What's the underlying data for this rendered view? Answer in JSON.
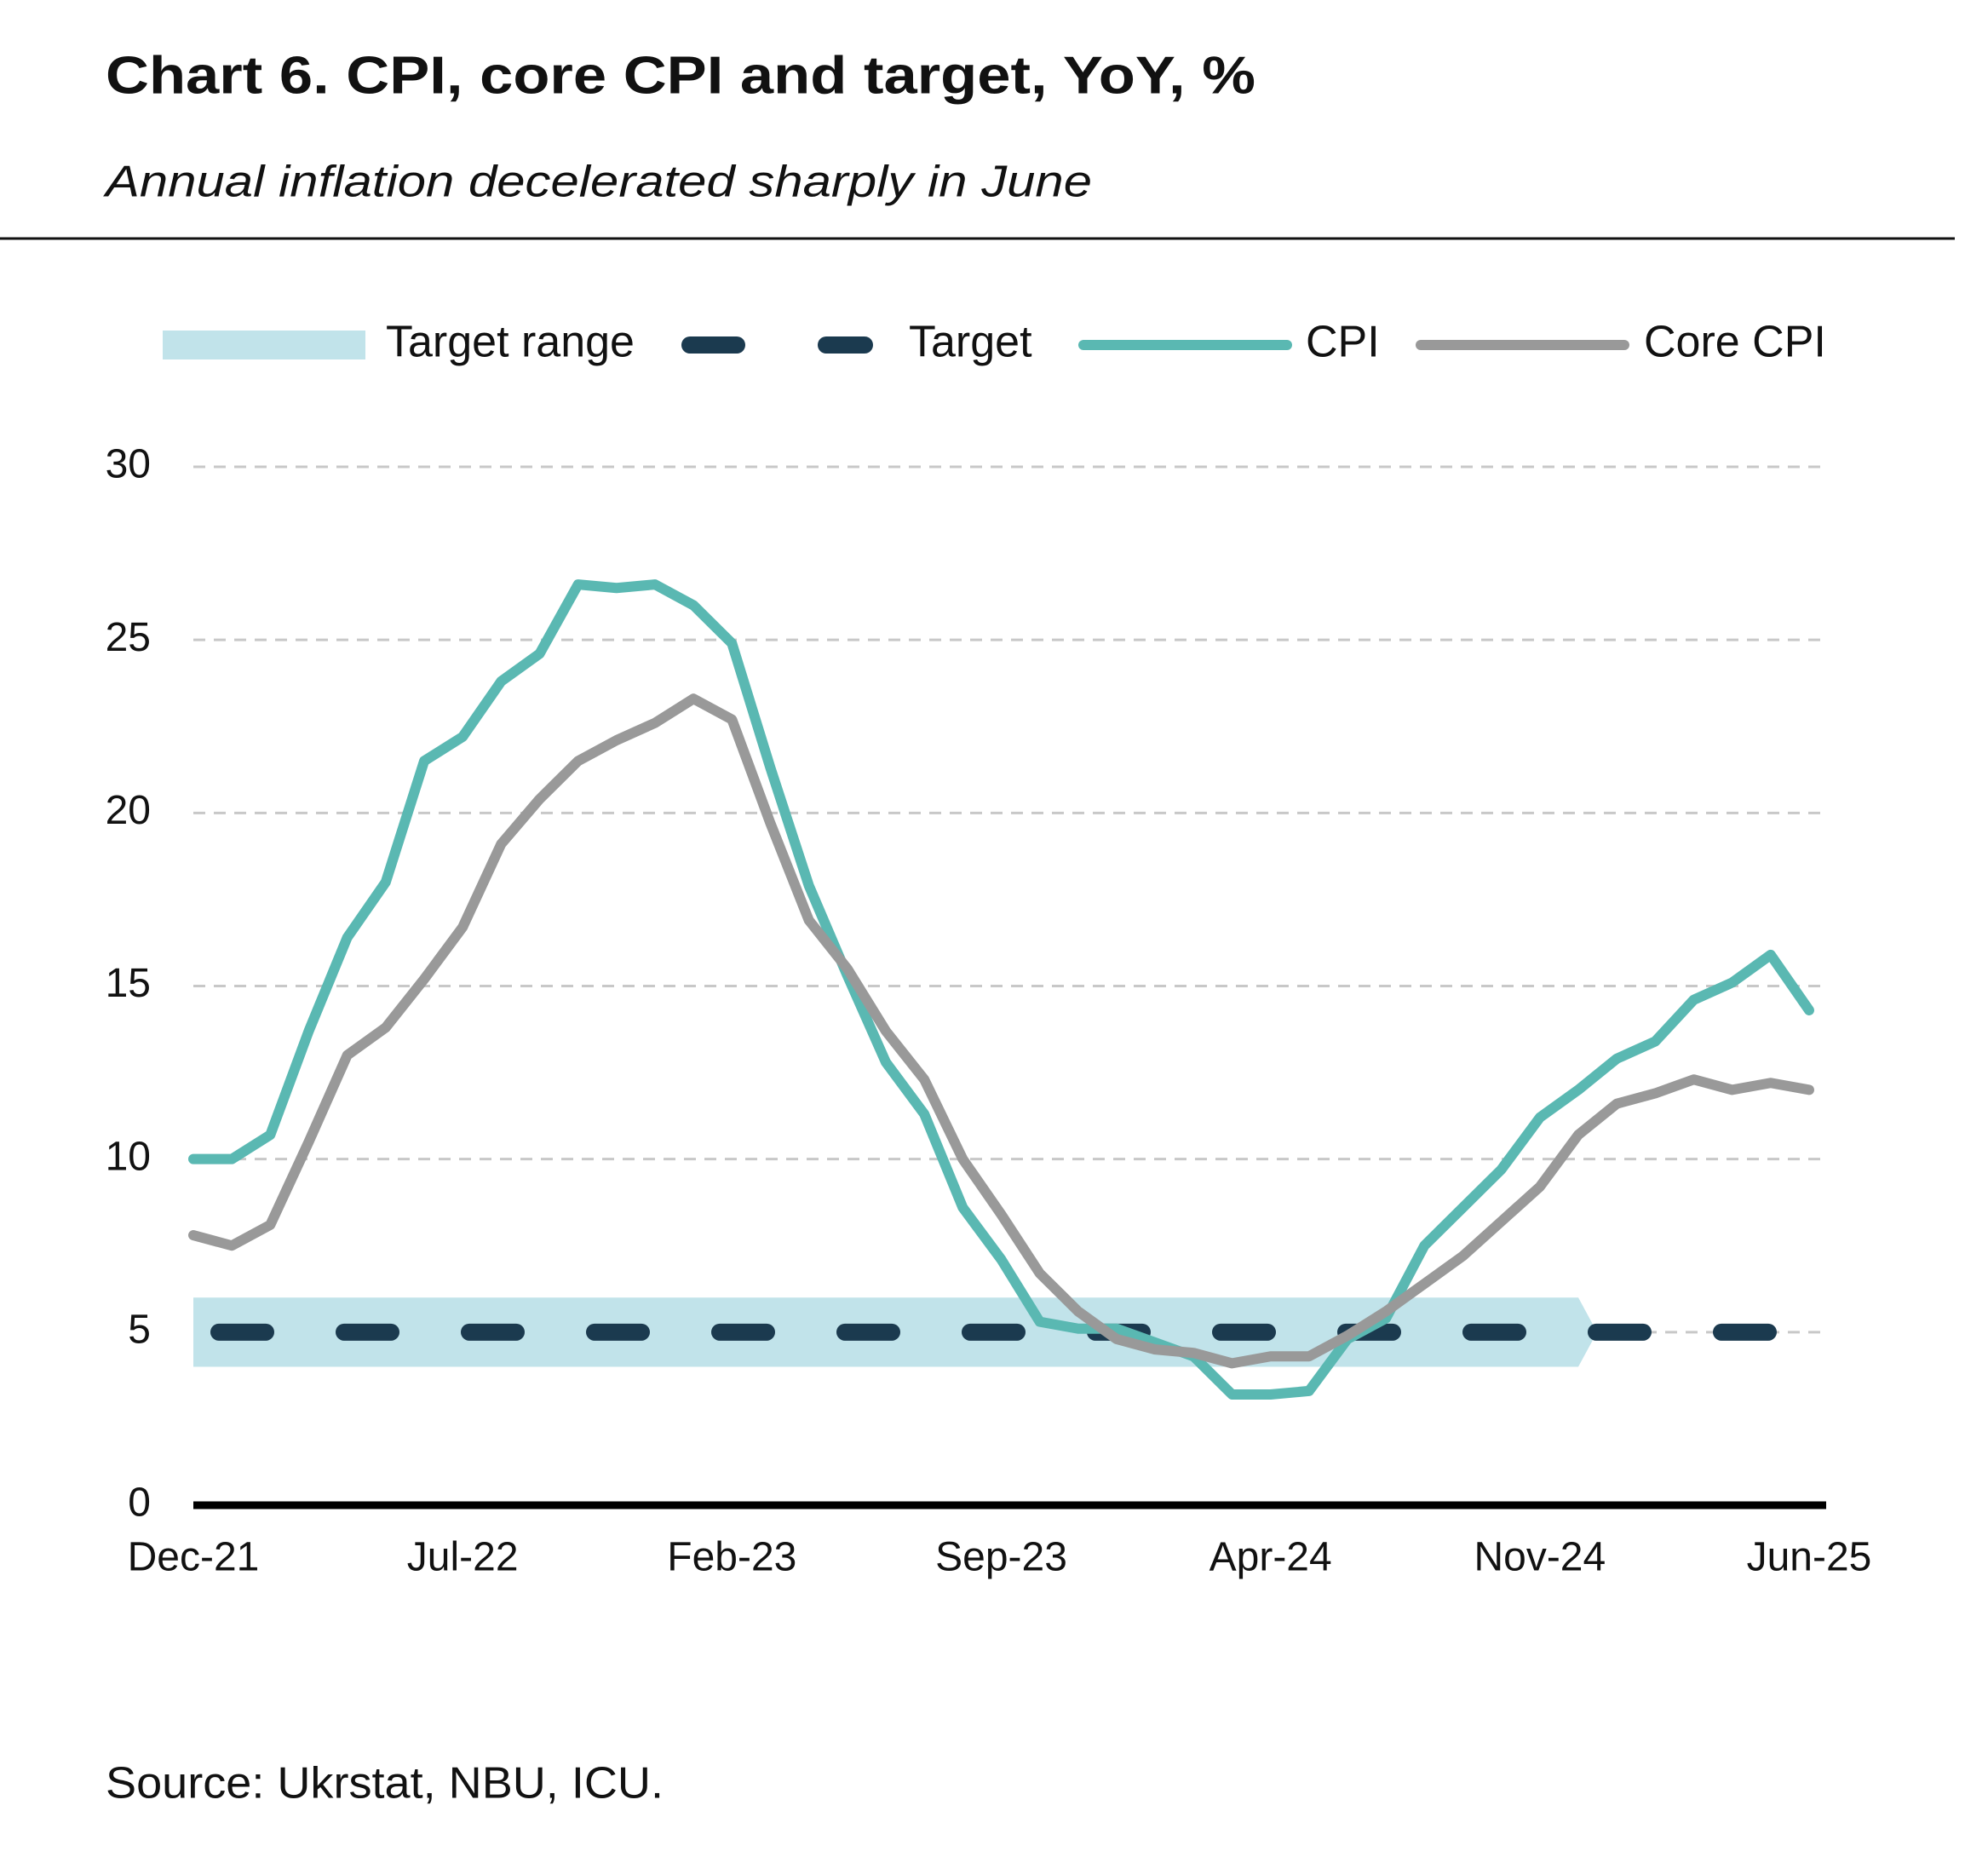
{
  "chart_data": {
    "type": "line",
    "title": "Chart 6. CPI, core CPI and target, YoY, %",
    "subtitle": "Annual inflation decelerated sharply in June",
    "source": "Source: Ukrstat, NBU, ICU.",
    "categories": [
      "Dec-21",
      null,
      null,
      null,
      null,
      null,
      null,
      "Jul-22",
      null,
      null,
      null,
      null,
      null,
      null,
      "Feb-23",
      null,
      null,
      null,
      null,
      null,
      null,
      "Sep-23",
      null,
      null,
      null,
      null,
      null,
      null,
      "Apr-24",
      null,
      null,
      null,
      null,
      null,
      null,
      "Nov-24",
      null,
      null,
      null,
      null,
      null,
      null,
      "Jun-25"
    ],
    "ylim": [
      0,
      30
    ],
    "yticks": [
      0,
      5,
      10,
      15,
      20,
      25,
      30
    ],
    "grid": true,
    "legend": "top",
    "target_range": {
      "name": "Target range",
      "color": "#c1e3ea",
      "lower": [
        4,
        4,
        4,
        4,
        4,
        4,
        4,
        4,
        4,
        4,
        4,
        4,
        4,
        4,
        4,
        4,
        4,
        4,
        4,
        4,
        4,
        4,
        4,
        4,
        4,
        4,
        4,
        4,
        4,
        4,
        4,
        4,
        4,
        4,
        4,
        4,
        4,
        null,
        null,
        null,
        null,
        null,
        null
      ],
      "upper": [
        6,
        6,
        6,
        6,
        6,
        6,
        6,
        6,
        6,
        6,
        6,
        6,
        6,
        6,
        6,
        6,
        6,
        6,
        6,
        6,
        6,
        6,
        6,
        6,
        6,
        6,
        6,
        6,
        6,
        6,
        6,
        6,
        6,
        6,
        6,
        6,
        6,
        null,
        null,
        null,
        null,
        null,
        null
      ]
    },
    "series": [
      {
        "name": "Target",
        "color": "#1b3a4f",
        "dashed": true,
        "values": [
          5,
          5,
          5,
          5,
          5,
          5,
          5,
          5,
          5,
          5,
          5,
          5,
          5,
          5,
          5,
          5,
          5,
          5,
          5,
          5,
          5,
          5,
          5,
          5,
          5,
          5,
          5,
          5,
          5,
          5,
          5,
          5,
          5,
          5,
          5,
          5,
          5,
          5,
          5,
          5,
          5,
          5,
          5
        ]
      },
      {
        "name": "CPI",
        "color": "#5ab8b2",
        "values": [
          10.0,
          10.0,
          10.7,
          13.7,
          16.4,
          18.0,
          21.5,
          22.2,
          23.8,
          24.6,
          26.6,
          26.5,
          26.6,
          26.0,
          24.9,
          21.3,
          17.9,
          15.3,
          12.8,
          11.3,
          8.6,
          7.1,
          5.3,
          5.1,
          5.1,
          4.7,
          4.3,
          3.2,
          3.2,
          3.3,
          4.8,
          5.4,
          7.5,
          8.6,
          9.7,
          11.2,
          12.0,
          12.9,
          13.4,
          14.6,
          15.1,
          15.9,
          14.3
        ]
      },
      {
        "name": "Core CPI",
        "color": "#999999",
        "values": [
          7.8,
          7.5,
          8.1,
          10.5,
          13.0,
          13.8,
          15.2,
          16.7,
          19.1,
          20.4,
          21.5,
          22.1,
          22.6,
          23.3,
          22.7,
          19.7,
          16.9,
          15.5,
          13.7,
          12.3,
          10.0,
          8.4,
          6.7,
          5.6,
          4.8,
          4.5,
          4.4,
          4.1,
          4.3,
          4.3,
          4.9,
          5.6,
          6.4,
          7.2,
          8.2,
          9.2,
          10.7,
          11.6,
          11.9,
          12.3,
          12.0,
          12.2,
          12.0
        ]
      }
    ]
  }
}
